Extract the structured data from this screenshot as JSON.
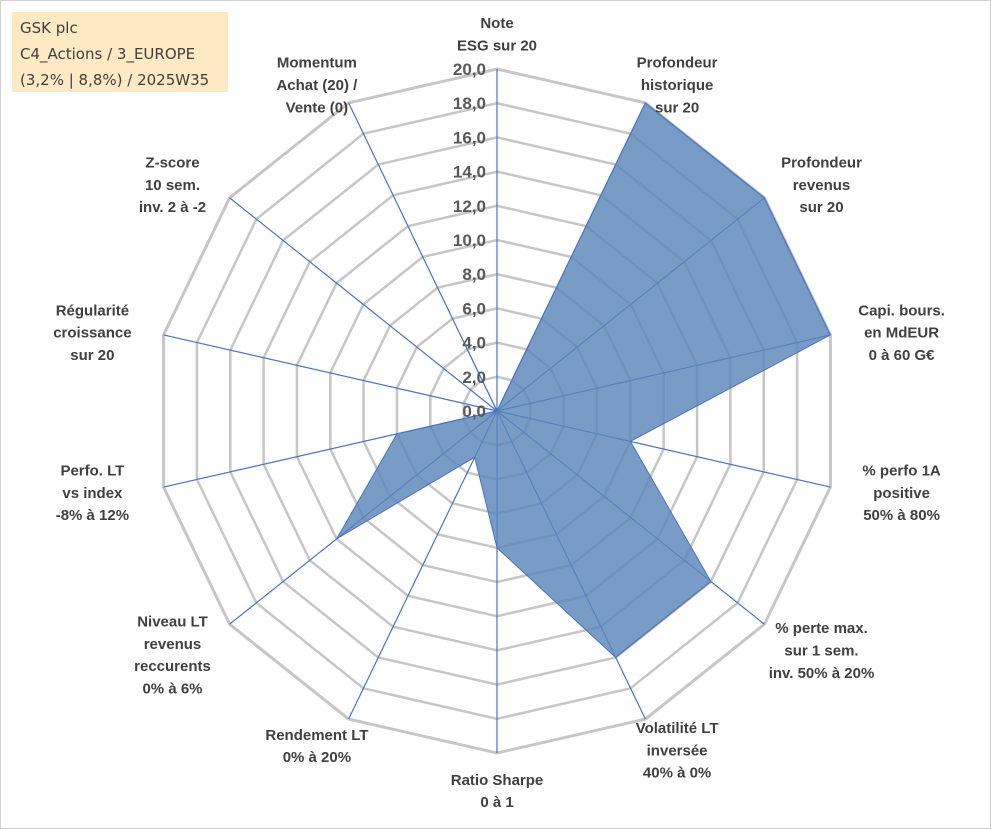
{
  "info": {
    "line1": "GSK plc",
    "line2": "C4_Actions / 3_EUROPE",
    "line3": "(3,2% | 8,8%) / 2025W35"
  },
  "colors": {
    "fill": "#5a86b8",
    "stroke": "#4a72c4",
    "grid": "#c6c6c6",
    "spoke": "#4a72c4"
  },
  "chart_data": {
    "type": "radar",
    "rmin": 0,
    "rmax": 20,
    "tick_step": 2,
    "ticks": [
      "0,0",
      "2,0",
      "4,0",
      "6,0",
      "8,0",
      "10,0",
      "12,0",
      "14,0",
      "16,0",
      "18,0",
      "20,0"
    ],
    "axes": [
      {
        "lines": [
          "Note",
          "ESG sur 20"
        ],
        "value": 0
      },
      {
        "lines": [
          "Profondeur",
          "historique",
          "sur 20"
        ],
        "value": 20
      },
      {
        "lines": [
          "Profondeur",
          "revenus",
          "sur 20"
        ],
        "value": 20
      },
      {
        "lines": [
          "Capi. bours.",
          "en MdEUR",
          "0 à 60 G€"
        ],
        "value": 20
      },
      {
        "lines": [
          "% perfo 1A",
          "positive",
          "50% à 80%"
        ],
        "value": 8
      },
      {
        "lines": [
          "% perte max.",
          "sur 1 sem.",
          "inv. 50% à 20%"
        ],
        "value": 16
      },
      {
        "lines": [
          "Volatilité LT",
          "inversée",
          "40% à 0%"
        ],
        "value": 16
      },
      {
        "lines": [
          "Ratio Sharpe",
          "0 à 1"
        ],
        "value": 8
      },
      {
        "lines": [
          "Rendement LT",
          "0% à 20%"
        ],
        "value": 3
      },
      {
        "lines": [
          "Niveau LT",
          "revenus",
          "reccurents",
          "0% à 6%"
        ],
        "value": 12
      },
      {
        "lines": [
          "Perfo. LT",
          "vs index",
          "-8% à 12%"
        ],
        "value": 6
      },
      {
        "lines": [
          "Régularité",
          "croissance",
          "sur 20"
        ],
        "value": 0
      },
      {
        "lines": [
          "Z-score",
          "10 sem.",
          "inv. 2 à -2"
        ],
        "value": 0
      },
      {
        "lines": [
          "Momentum",
          "Achat (20) /",
          "Vente (0)"
        ],
        "value": 4.5
      }
    ]
  }
}
